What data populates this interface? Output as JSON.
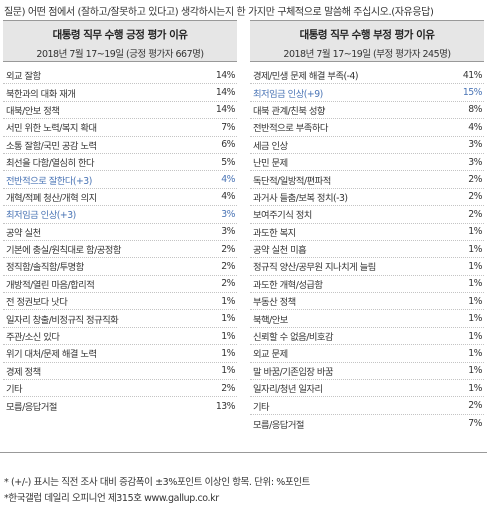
{
  "question": {
    "prefix": "질문)",
    "body": "어떤 점에서 (잘하고/잘못하고 있다고) 생각하시는지 한 가지만 구체적으로 말씀해 주십시오.",
    "suffix": "(자유응답)"
  },
  "left_panel": {
    "title": "대통령 직무 수행 긍정 평가 이유",
    "subtitle": "2018년 7월 17~19일 (긍정 평가자 667명)",
    "rows": [
      {
        "label": "외교 잘함",
        "value": "14%",
        "highlight": false
      },
      {
        "label": "북한과의 대화 재개",
        "value": "14%",
        "highlight": false
      },
      {
        "label": "대북/안보 정책",
        "value": "14%",
        "highlight": false
      },
      {
        "label": "서민 위한 노력/복지 확대",
        "value": "7%",
        "highlight": false
      },
      {
        "label": "소통 잘함/국민 공감 노력",
        "value": "6%",
        "highlight": false
      },
      {
        "label": "최선을 다함/열심히 한다",
        "value": "5%",
        "highlight": false
      },
      {
        "label": "전반적으로 잘한다(+3)",
        "value": "4%",
        "highlight": true
      },
      {
        "label": "개혁/적폐 청산/개혁 의지",
        "value": "4%",
        "highlight": false
      },
      {
        "label": "최저임금 인상(+3)",
        "value": "3%",
        "highlight": true
      },
      {
        "label": "공약 실천",
        "value": "3%",
        "highlight": false
      },
      {
        "label": "기본에 충실/원칙대로 함/공정함",
        "value": "2%",
        "highlight": false
      },
      {
        "label": "정직함/솔직함/투명함",
        "value": "2%",
        "highlight": false
      },
      {
        "label": "개방적/열린 마음/합리적",
        "value": "2%",
        "highlight": false
      },
      {
        "label": "전 정권보다 낫다",
        "value": "1%",
        "highlight": false
      },
      {
        "label": "일자리 창출/비정규직 정규직화",
        "value": "1%",
        "highlight": false
      },
      {
        "label": "주관/소신 있다",
        "value": "1%",
        "highlight": false
      },
      {
        "label": "위기 대처/문제 해결 노력",
        "value": "1%",
        "highlight": false
      },
      {
        "label": "경제 정책",
        "value": "1%",
        "highlight": false
      },
      {
        "label": "기타",
        "value": "2%",
        "highlight": false
      },
      {
        "label": "모름/응답거절",
        "value": "13%",
        "highlight": false
      }
    ]
  },
  "right_panel": {
    "title": "대통령 직무 수행 부정 평가 이유",
    "subtitle": "2018년 7월 17~19일 (부정 평가자 245명)",
    "rows": [
      {
        "label": "경제/민생 문제 해결 부족(-4)",
        "value": "41%",
        "highlight": false
      },
      {
        "label": "최저임금 인상(+9)",
        "value": "15%",
        "highlight": true
      },
      {
        "label": "대북 관계/친북 성향",
        "value": "8%",
        "highlight": false
      },
      {
        "label": "전반적으로 부족하다",
        "value": "4%",
        "highlight": false
      },
      {
        "label": "세금 인상",
        "value": "3%",
        "highlight": false
      },
      {
        "label": "난민 문제",
        "value": "3%",
        "highlight": false
      },
      {
        "label": "독단적/일방적/편파적",
        "value": "2%",
        "highlight": false
      },
      {
        "label": "과거사 들춤/보복 정치(-3)",
        "value": "2%",
        "highlight": false
      },
      {
        "label": "보여주기식 정치",
        "value": "2%",
        "highlight": false
      },
      {
        "label": "과도한 복지",
        "value": "1%",
        "highlight": false
      },
      {
        "label": "공약 실천 미흡",
        "value": "1%",
        "highlight": false
      },
      {
        "label": "정규직 양산/공무원 지나치게 늘림",
        "value": "1%",
        "highlight": false
      },
      {
        "label": "과도한 개혁/성급함",
        "value": "1%",
        "highlight": false
      },
      {
        "label": "부동산 정책",
        "value": "1%",
        "highlight": false
      },
      {
        "label": "북핵/안보",
        "value": "1%",
        "highlight": false
      },
      {
        "label": "신뢰할 수 없음/비호감",
        "value": "1%",
        "highlight": false
      },
      {
        "label": "외교 문제",
        "value": "1%",
        "highlight": false
      },
      {
        "label": "말 바꿈/기존입장 바꿈",
        "value": "1%",
        "highlight": false
      },
      {
        "label": "일자리/청년 일자리",
        "value": "1%",
        "highlight": false
      },
      {
        "label": "기타",
        "value": "2%",
        "highlight": false
      },
      {
        "label": "모름/응답거절",
        "value": "7%",
        "highlight": false
      }
    ]
  },
  "footnotes": {
    "note1": "* (+/-) 표시는 직전 조사 대비 증감폭이 ±3%포인트 이상인 항목. 단위: %포인트",
    "note2": "*한국갤럽 데일리 오피니언 제315호 www.gallup.co.kr"
  },
  "colors": {
    "highlight": "#4a74b5",
    "header_bg": "#e6e6e6"
  }
}
